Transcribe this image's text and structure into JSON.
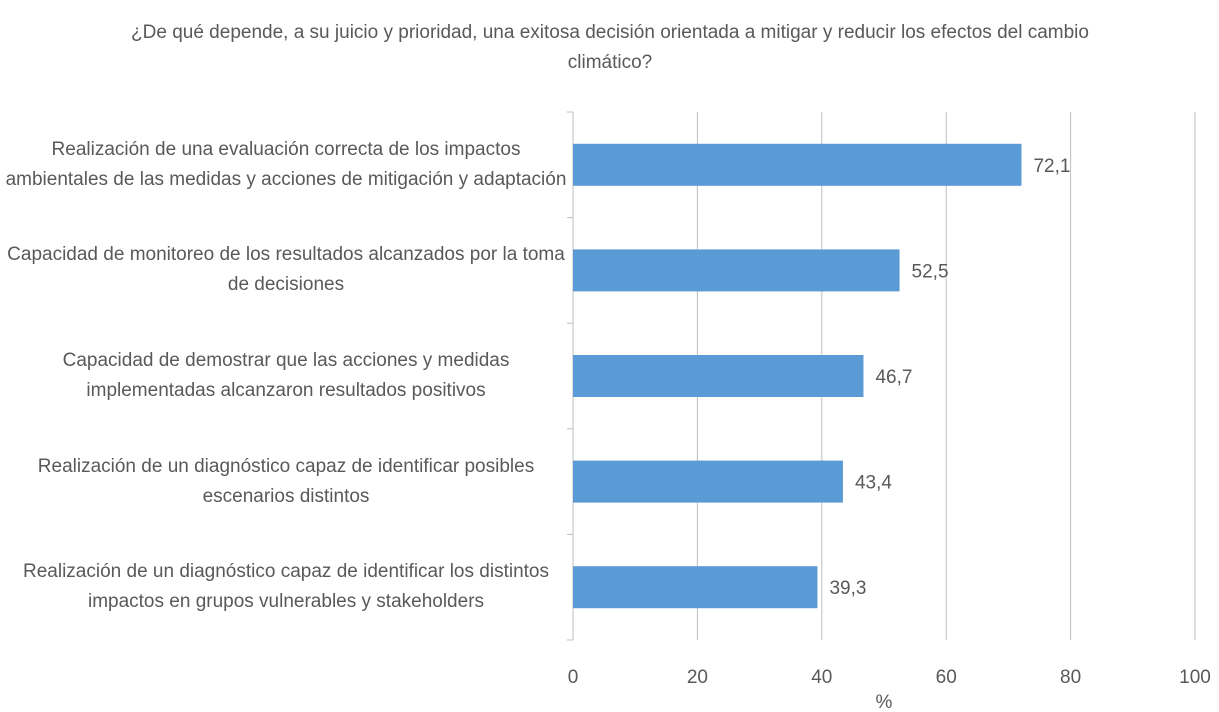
{
  "chart_data": {
    "type": "bar",
    "orientation": "horizontal",
    "title": "¿De qué depende, a su juicio y prioridad, una exitosa decisión orientada a mitigar y reducir los efectos del cambio climático?",
    "xlabel": "%",
    "categories": [
      "Realización de una evaluación correcta de los impactos ambientales de las medidas y acciones de mitigación y adaptación",
      "Capacidad de monitoreo de los resultados alcanzados por la toma de decisiones",
      "Capacidad de demostrar que las acciones y medidas implementadas alcanzaron resultados positivos",
      "Realización de un diagnóstico capaz de identificar posibles escenarios distintos",
      "Realización de un diagnóstico capaz de identificar los distintos impactos en grupos vulnerables y stakeholders"
    ],
    "values": [
      72.1,
      52.5,
      46.7,
      43.4,
      39.3
    ],
    "value_labels": [
      "72,1",
      "52,5",
      "46,7",
      "43,4",
      "39,3"
    ],
    "color": "#5b9bd5",
    "xlim": [
      0,
      100
    ],
    "xticks": [
      0,
      20,
      40,
      60,
      80,
      100
    ],
    "grid": true
  }
}
